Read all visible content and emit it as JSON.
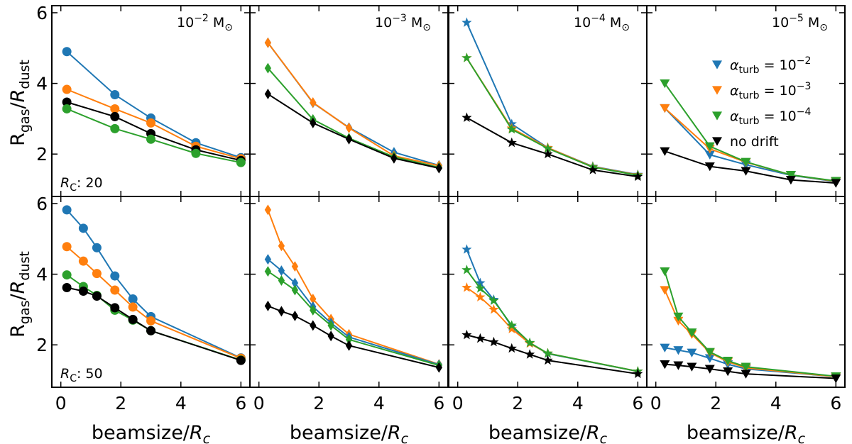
{
  "chart_data": {
    "type": "line",
    "ylabel": "R_gas/R_dust",
    "xlabel": "beamsize/R_c",
    "xlim": [
      -0.3,
      6.3
    ],
    "ylim": [
      0.8,
      6.2
    ],
    "xticks": [
      0,
      2,
      4,
      6
    ],
    "yticks": [
      2,
      4,
      6
    ],
    "grid": false,
    "legend_position": "top-right panel (10^-5 M_sun, R_C 20)",
    "colors": {
      "1e-2": "#1f77b4",
      "1e-3": "#ff7f0e",
      "1e-4": "#2ca02c",
      "nodrift": "#000000"
    },
    "legend": [
      {
        "key": "1e-2",
        "text_main": "α",
        "text_sub": "turb",
        "text_eq": " = 10",
        "text_sup": "−2",
        "marker": "triangle-down"
      },
      {
        "key": "1e-3",
        "text_main": "α",
        "text_sub": "turb",
        "text_eq": " = 10",
        "text_sup": "−3",
        "marker": "triangle-down"
      },
      {
        "key": "1e-4",
        "text_main": "α",
        "text_sub": "turb",
        "text_eq": " = 10",
        "text_sup": "−4",
        "marker": "triangle-down"
      },
      {
        "key": "nodrift",
        "text_main": "no drift",
        "text_sub": "",
        "text_eq": "",
        "text_sup": "",
        "marker": "triangle-down"
      }
    ],
    "column_titles": [
      {
        "base": "10",
        "exp": "−2",
        "unit": " M",
        "unit_sub": "⊙"
      },
      {
        "base": "10",
        "exp": "−3",
        "unit": " M",
        "unit_sub": "⊙"
      },
      {
        "base": "10",
        "exp": "−4",
        "unit": " M",
        "unit_sub": "⊙"
      },
      {
        "base": "10",
        "exp": "−5",
        "unit": " M",
        "unit_sub": "⊙"
      }
    ],
    "row_labels": [
      {
        "prefix": "R",
        "sub": "C",
        "rest": ": 20"
      },
      {
        "prefix": "R",
        "sub": "C",
        "rest": ": 50"
      }
    ],
    "panels": [
      {
        "row": 0,
        "col": 0,
        "marker": "circle",
        "series": [
          {
            "key": "1e-2",
            "x": [
              0.2,
              1.8,
              3.0,
              4.5,
              6.0
            ],
            "y": [
              4.9,
              3.68,
              3.02,
              2.32,
              1.9
            ]
          },
          {
            "key": "1e-3",
            "x": [
              0.2,
              1.8,
              3.0,
              4.5,
              6.0
            ],
            "y": [
              3.83,
              3.28,
              2.88,
              2.22,
              1.87
            ]
          },
          {
            "key": "nodrift",
            "x": [
              0.2,
              1.8,
              3.0,
              4.5,
              6.0
            ],
            "y": [
              3.47,
              3.06,
              2.58,
              2.12,
              1.82
            ]
          },
          {
            "key": "1e-4",
            "x": [
              0.2,
              1.8,
              3.0,
              4.5,
              6.0
            ],
            "y": [
              3.28,
              2.72,
              2.42,
              2.02,
              1.76
            ]
          }
        ]
      },
      {
        "row": 0,
        "col": 1,
        "marker": "diamond",
        "series": [
          {
            "key": "1e-2",
            "x": [
              0.3,
              1.8,
              3.0,
              4.5,
              6.0
            ],
            "y": [
              5.15,
              3.45,
              2.75,
              2.05,
              1.68
            ]
          },
          {
            "key": "1e-3",
            "x": [
              0.3,
              1.8,
              3.0,
              4.5,
              6.0
            ],
            "y": [
              5.15,
              3.46,
              2.74,
              1.95,
              1.67
            ]
          },
          {
            "key": "1e-4",
            "x": [
              0.3,
              1.8,
              3.0,
              4.5,
              6.0
            ],
            "y": [
              4.43,
              2.98,
              2.45,
              1.92,
              1.62
            ]
          },
          {
            "key": "nodrift",
            "x": [
              0.3,
              1.8,
              3.0,
              4.5,
              6.0
            ],
            "y": [
              3.7,
              2.88,
              2.42,
              1.88,
              1.6
            ]
          }
        ]
      },
      {
        "row": 0,
        "col": 2,
        "marker": "star",
        "series": [
          {
            "key": "1e-2",
            "x": [
              0.3,
              1.8,
              3.0,
              4.5,
              6.0
            ],
            "y": [
              5.72,
              2.85,
              2.18,
              1.65,
              1.42
            ]
          },
          {
            "key": "1e-3",
            "x": [
              0.3,
              1.8,
              3.0,
              4.5,
              6.0
            ],
            "y": [
              4.72,
              2.73,
              2.18,
              1.64,
              1.41
            ]
          },
          {
            "key": "1e-4",
            "x": [
              0.3,
              1.8,
              3.0,
              4.5,
              6.0
            ],
            "y": [
              4.72,
              2.7,
              2.16,
              1.63,
              1.4
            ]
          },
          {
            "key": "nodrift",
            "x": [
              0.3,
              1.8,
              3.0,
              4.5,
              6.0
            ],
            "y": [
              3.03,
              2.32,
              2.0,
              1.55,
              1.36
            ]
          }
        ]
      },
      {
        "row": 0,
        "col": 3,
        "marker": "triangle-down",
        "series": [
          {
            "key": "1e-2",
            "x": [
              0.3,
              1.8,
              3.0,
              4.5,
              6.0
            ],
            "y": [
              3.3,
              1.98,
              1.7,
              1.4,
              1.22
            ]
          },
          {
            "key": "1e-3",
            "x": [
              0.3,
              1.8,
              3.0,
              4.5,
              6.0
            ],
            "y": [
              3.3,
              2.15,
              1.77,
              1.41,
              1.23
            ]
          },
          {
            "key": "1e-4",
            "x": [
              0.3,
              1.8,
              3.0,
              4.5,
              6.0
            ],
            "y": [
              4.0,
              2.22,
              1.78,
              1.41,
              1.24
            ]
          },
          {
            "key": "nodrift",
            "x": [
              0.3,
              1.8,
              3.0,
              4.5,
              6.0
            ],
            "y": [
              2.08,
              1.65,
              1.52,
              1.27,
              1.18
            ]
          }
        ]
      },
      {
        "row": 1,
        "col": 0,
        "marker": "circle",
        "series": [
          {
            "key": "1e-2",
            "x": [
              0.2,
              0.75,
              1.2,
              1.8,
              2.4,
              3.0,
              6.0
            ],
            "y": [
              5.82,
              5.3,
              4.75,
              3.95,
              3.3,
              2.8,
              1.63
            ]
          },
          {
            "key": "1e-3",
            "x": [
              0.2,
              0.75,
              1.2,
              1.8,
              2.4,
              3.0,
              6.0
            ],
            "y": [
              4.78,
              4.37,
              4.02,
              3.55,
              3.07,
              2.68,
              1.62
            ]
          },
          {
            "key": "1e-4",
            "x": [
              0.2,
              0.75,
              1.2,
              1.8,
              2.4,
              3.0,
              6.0
            ],
            "y": [
              3.98,
              3.65,
              3.4,
              2.98,
              2.7,
              2.4,
              1.57
            ]
          },
          {
            "key": "nodrift",
            "x": [
              0.2,
              0.75,
              1.2,
              1.8,
              2.4,
              3.0,
              6.0
            ],
            "y": [
              3.62,
              3.52,
              3.38,
              3.05,
              2.72,
              2.4,
              1.56
            ]
          }
        ]
      },
      {
        "row": 1,
        "col": 1,
        "marker": "diamond",
        "series": [
          {
            "key": "1e-3",
            "x": [
              0.3,
              0.75,
              1.2,
              1.8,
              2.4,
              3.0,
              6.0
            ],
            "y": [
              5.82,
              4.8,
              4.22,
              3.3,
              2.73,
              2.3,
              1.45
            ]
          },
          {
            "key": "1e-2",
            "x": [
              0.3,
              0.75,
              1.2,
              1.8,
              2.4,
              3.0,
              6.0
            ],
            "y": [
              4.42,
              4.1,
              3.75,
              3.08,
              2.62,
              2.22,
              1.44
            ]
          },
          {
            "key": "1e-4",
            "x": [
              0.3,
              0.75,
              1.2,
              1.8,
              2.4,
              3.0,
              6.0
            ],
            "y": [
              4.08,
              3.82,
              3.55,
              2.98,
              2.55,
              2.15,
              1.42
            ]
          },
          {
            "key": "nodrift",
            "x": [
              0.3,
              0.75,
              1.2,
              1.8,
              2.4,
              3.0,
              6.0
            ],
            "y": [
              3.1,
              2.95,
              2.82,
              2.55,
              2.25,
              1.98,
              1.36
            ]
          }
        ]
      },
      {
        "row": 1,
        "col": 2,
        "marker": "star",
        "series": [
          {
            "key": "1e-2",
            "x": [
              0.3,
              0.75,
              1.2,
              1.8,
              2.4,
              3.0,
              6.0
            ],
            "y": [
              4.7,
              3.75,
              3.28,
              2.52,
              2.05,
              1.75,
              1.25
            ]
          },
          {
            "key": "1e-3",
            "x": [
              0.3,
              0.75,
              1.2,
              1.8,
              2.4,
              3.0,
              6.0
            ],
            "y": [
              3.62,
              3.35,
              3.0,
              2.45,
              2.04,
              1.76,
              1.25
            ]
          },
          {
            "key": "1e-4",
            "x": [
              0.3,
              0.75,
              1.2,
              1.8,
              2.4,
              3.0,
              6.0
            ],
            "y": [
              4.12,
              3.6,
              3.25,
              2.55,
              2.06,
              1.76,
              1.25
            ]
          },
          {
            "key": "nodrift",
            "x": [
              0.3,
              0.75,
              1.2,
              1.8,
              2.4,
              3.0,
              6.0
            ],
            "y": [
              2.28,
              2.18,
              2.08,
              1.9,
              1.73,
              1.56,
              1.18
            ]
          }
        ]
      },
      {
        "row": 1,
        "col": 3,
        "marker": "triangle-down",
        "series": [
          {
            "key": "1e-2",
            "x": [
              0.3,
              0.75,
              1.2,
              1.8,
              2.4,
              3.0,
              6.0
            ],
            "y": [
              1.92,
              1.85,
              1.78,
              1.62,
              1.45,
              1.32,
              1.1
            ]
          },
          {
            "key": "1e-3",
            "x": [
              0.3,
              0.75,
              1.2,
              1.8,
              2.4,
              3.0,
              6.0
            ],
            "y": [
              3.55,
              2.68,
              2.3,
              1.78,
              1.52,
              1.35,
              1.1
            ]
          },
          {
            "key": "1e-4",
            "x": [
              0.3,
              0.75,
              1.2,
              1.8,
              2.4,
              3.0,
              6.0
            ],
            "y": [
              4.08,
              2.8,
              2.35,
              1.8,
              1.55,
              1.38,
              1.11
            ]
          },
          {
            "key": "nodrift",
            "x": [
              0.3,
              0.75,
              1.2,
              1.8,
              2.4,
              3.0,
              6.0
            ],
            "y": [
              1.45,
              1.42,
              1.38,
              1.32,
              1.25,
              1.18,
              1.05
            ]
          }
        ]
      }
    ]
  }
}
